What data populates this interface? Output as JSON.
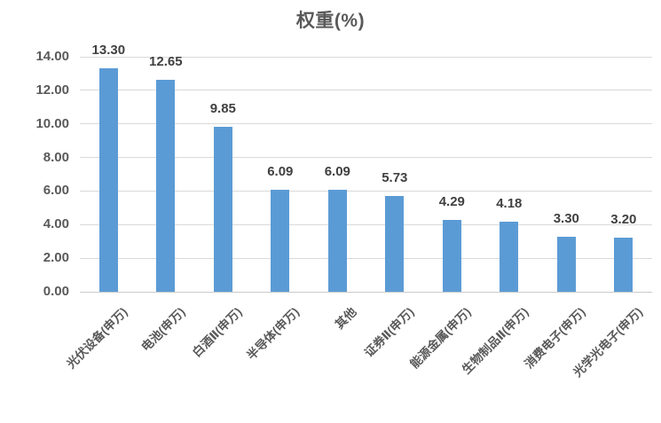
{
  "chart_data": {
    "type": "bar",
    "title": "权重(%)",
    "categories": [
      "光伏设备(申万)",
      "电池(申万)",
      "白酒Ⅱ(申万)",
      "半导体(申万)",
      "其他",
      "证券Ⅱ(申万)",
      "能源金属(申万)",
      "生物制品Ⅱ(申万)",
      "消费电子(申万)",
      "光学光电子(申万)"
    ],
    "values": [
      13.3,
      12.65,
      9.85,
      6.09,
      6.09,
      5.73,
      4.29,
      4.18,
      3.3,
      3.2
    ],
    "value_labels": [
      "13.30",
      "12.65",
      "9.85",
      "6.09",
      "6.09",
      "5.73",
      "4.29",
      "4.18",
      "3.30",
      "3.20"
    ],
    "xlabel": "",
    "ylabel": "",
    "ylim": [
      0,
      14
    ],
    "ytick_step": 2,
    "ytick_labels": [
      "0.00",
      "2.00",
      "4.00",
      "6.00",
      "8.00",
      "10.00",
      "12.00",
      "14.00"
    ],
    "grid": true,
    "legend_position": "none",
    "colors": {
      "bar": "#5B9BD5",
      "gridline": "#D9D9D9",
      "axis_line": "#C9C9C9",
      "value_label_text": "#404040",
      "axis_text": "#595959",
      "title_text": "#595959",
      "background": "#FFFFFF"
    }
  }
}
